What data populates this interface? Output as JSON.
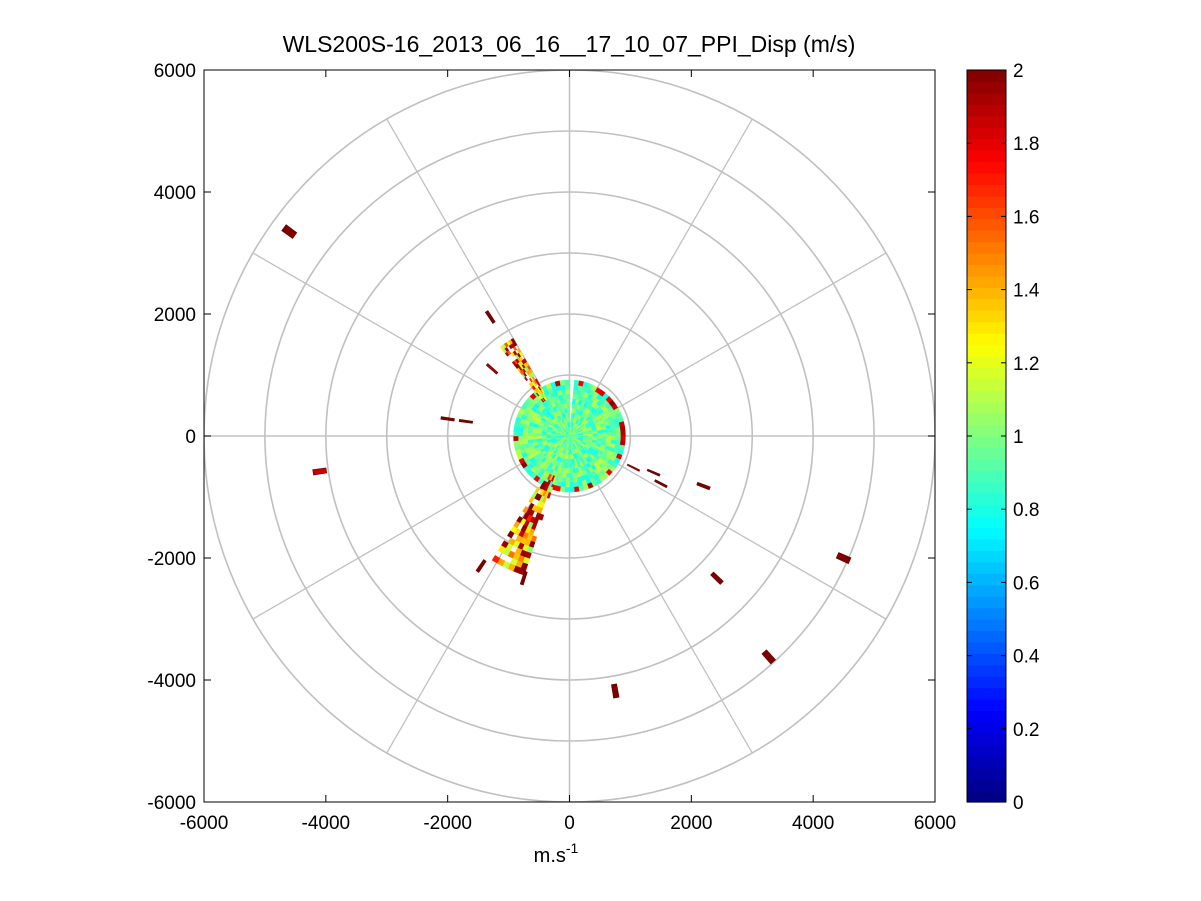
{
  "chart_data": {
    "type": "heatmap",
    "title": "WLS200S-16_2013_06_16__17_10_07_PPI_Disp (m/s)",
    "xlabel": "m.s",
    "xlabel_superscript": "-1",
    "ylabel": "",
    "xlim": [
      -6000,
      6000
    ],
    "ylim": [
      -6000,
      6000
    ],
    "xticks": [
      -6000,
      -4000,
      -2000,
      0,
      2000,
      4000,
      6000
    ],
    "yticks": [
      6000,
      4000,
      2000,
      0,
      -2000,
      -4000,
      -6000
    ],
    "xtick_labels": [
      "-6000",
      "-4000",
      "-2000",
      "0",
      "2000",
      "4000",
      "6000"
    ],
    "ytick_labels": [
      "6000",
      "4000",
      "2000",
      "0",
      "-2000",
      "-4000",
      "-6000"
    ],
    "polar_grid": {
      "ring_radii_m": [
        1000,
        2000,
        3000,
        4000,
        5000,
        6000
      ],
      "spoke_angles_deg": [
        0,
        30,
        60,
        90,
        120,
        150,
        180,
        210,
        240,
        270,
        300,
        330
      ]
    },
    "colorbar": {
      "colormap": "jet",
      "range": [
        0,
        2
      ],
      "ticks": [
        0,
        0.2,
        0.4,
        0.6,
        0.8,
        1,
        1.2,
        1.4,
        1.6,
        1.8,
        2
      ],
      "tick_labels": [
        "0",
        "0.2",
        "0.4",
        "0.6",
        "0.8",
        "1",
        "1.2",
        "1.4",
        "1.6",
        "1.8",
        "2"
      ]
    },
    "central_disk": {
      "radius_m": 920,
      "mean_value": 0.95
    },
    "sectors": [
      {
        "name": "nw-beam",
        "az_from_deg": 322,
        "az_to_deg": 330,
        "range_from_m": 700,
        "range_to_m": 1850,
        "mean_value": 1.2
      },
      {
        "name": "ssw-beam",
        "az_from_deg": 198,
        "az_to_deg": 212,
        "range_from_m": 700,
        "range_to_m": 2400,
        "mean_value": 1.25
      }
    ],
    "outlier_returns": [
      {
        "x": -4600,
        "y": 3350,
        "value": 2.0
      },
      {
        "x": -1300,
        "y": 1950,
        "value": 2.0
      },
      {
        "x": -4100,
        "y": -580,
        "value": 1.85
      },
      {
        "x": -2000,
        "y": 280,
        "value": 2.0
      },
      {
        "x": -1700,
        "y": 240,
        "value": 2.0
      },
      {
        "x": -1450,
        "y": -2130,
        "value": 2.0
      },
      {
        "x": -750,
        "y": -2330,
        "value": 2.0
      },
      {
        "x": -1270,
        "y": 1100,
        "value": 1.9
      },
      {
        "x": 2200,
        "y": -820,
        "value": 2.0
      },
      {
        "x": 2420,
        "y": -2330,
        "value": 2.0
      },
      {
        "x": 4500,
        "y": -2000,
        "value": 2.0
      },
      {
        "x": 3270,
        "y": -3620,
        "value": 2.0
      },
      {
        "x": 750,
        "y": -4180,
        "value": 2.0
      },
      {
        "x": 1380,
        "y": -600,
        "value": 2.0
      },
      {
        "x": 1500,
        "y": -780,
        "value": 2.0
      },
      {
        "x": 1050,
        "y": -520,
        "value": 1.9
      }
    ]
  },
  "colors": {
    "grid": "#c0c0c0",
    "axes": "#000000",
    "background": "#ffffff"
  }
}
